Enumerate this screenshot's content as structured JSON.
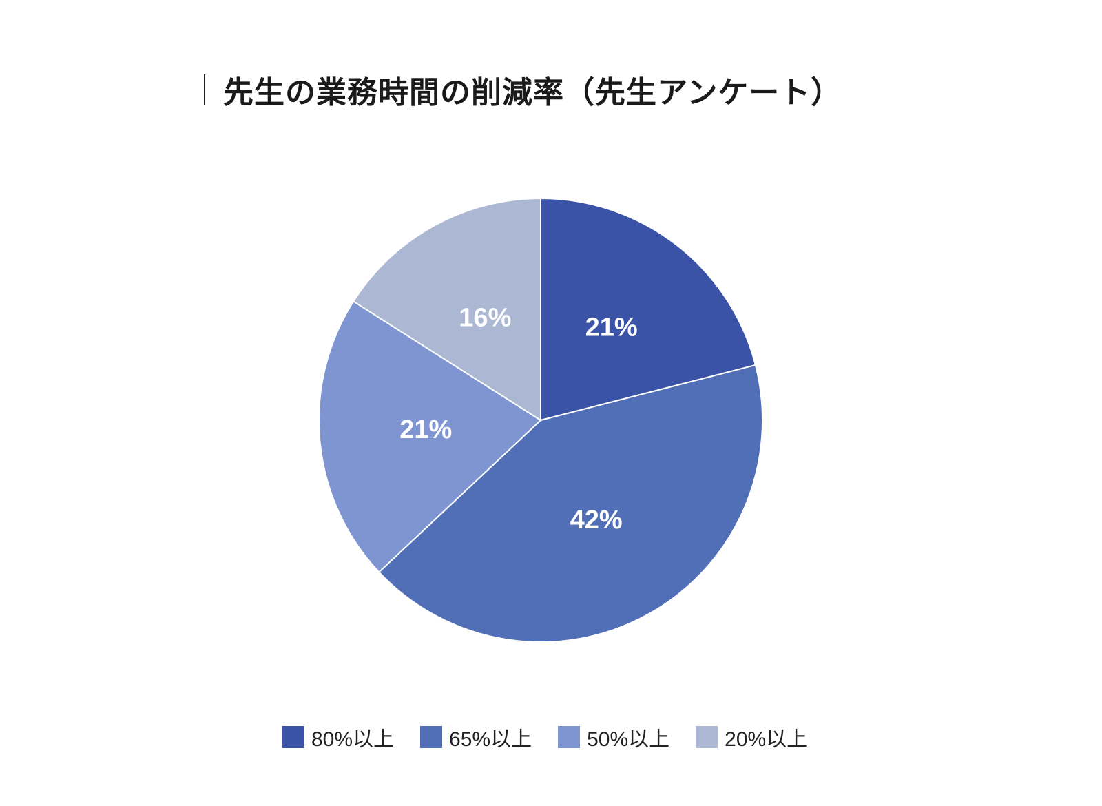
{
  "chart_data": {
    "type": "pie",
    "title": "先生の業務時間の削減率（先生アンケート）",
    "categories": [
      "80%以上",
      "65%以上",
      "50%以上",
      "20%以上"
    ],
    "values": [
      21,
      42,
      21,
      16
    ],
    "labels": [
      "21%",
      "42%",
      "21%",
      "16%"
    ],
    "colors": [
      "#3a53a6",
      "#516fb7",
      "#7f95d2",
      "#acb8d3"
    ],
    "legend_position": "bottom"
  }
}
